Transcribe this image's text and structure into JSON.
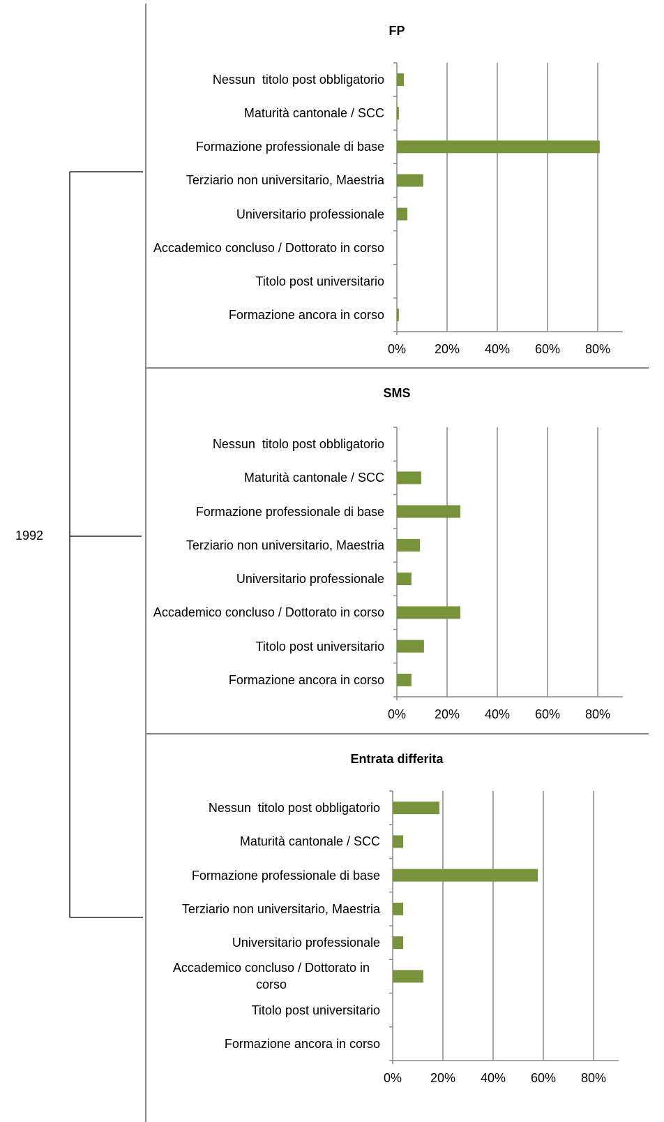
{
  "label": "1992",
  "chart_data": [
    {
      "type": "bar",
      "orientation": "horizontal",
      "title": "FP",
      "categories": [
        "Nessun  titolo post obbligatorio",
        "Maturità cantonale / SCC",
        "Formazione professionale di base",
        "Terziario non universitario, Maestria",
        "Universitario professionale",
        "Accademico concluso / Dottorato in corso",
        "Titolo post universitario",
        "Formazione ancora in corso"
      ],
      "values": [
        2.8,
        0.8,
        80.8,
        10.5,
        4.2,
        0,
        0,
        0.8
      ],
      "color": "#77933c",
      "xlim": [
        0,
        90
      ],
      "xticks": [
        {
          "value": 0,
          "label": "0%"
        },
        {
          "value": 20,
          "label": "20%"
        },
        {
          "value": 40,
          "label": "40%"
        },
        {
          "value": 60,
          "label": "60%"
        },
        {
          "value": 80,
          "label": "80%"
        }
      ],
      "grid": true
    },
    {
      "type": "bar",
      "orientation": "horizontal",
      "title": "SMS",
      "categories": [
        "Nessun  titolo post obbligatorio",
        "Maturità cantonale / SCC",
        "Formazione professionale di base",
        "Terziario non universitario, Maestria",
        "Universitario professionale",
        "Accademico concluso / Dottorato in corso",
        "Titolo post universitario",
        "Formazione ancora in corso"
      ],
      "values": [
        0,
        9.7,
        25.3,
        9.2,
        5.8,
        25.3,
        10.8,
        5.8
      ],
      "color": "#77933c",
      "xlim": [
        0,
        90
      ],
      "xticks": [
        {
          "value": 0,
          "label": "0%"
        },
        {
          "value": 20,
          "label": "20%"
        },
        {
          "value": 40,
          "label": "40%"
        },
        {
          "value": 60,
          "label": "60%"
        },
        {
          "value": 80,
          "label": "80%"
        }
      ],
      "grid": true
    },
    {
      "type": "bar",
      "orientation": "horizontal",
      "title": "Entrata differita",
      "categories": [
        "Nessun  titolo post obbligatorio",
        "Maturità cantonale / SCC",
        "Formazione professionale di base",
        "Terziario non universitario, Maestria",
        "Universitario professionale",
        "Accademico concluso / Dottorato in corso",
        "Titolo post universitario",
        "Formazione ancora in corso"
      ],
      "values": [
        18.6,
        4.2,
        57.8,
        4.2,
        4.2,
        12.2,
        0,
        0
      ],
      "color": "#77933c",
      "xlim": [
        0,
        90
      ],
      "xticks": [
        {
          "value": 0,
          "label": "0%"
        },
        {
          "value": 20,
          "label": "20%"
        },
        {
          "value": 40,
          "label": "40%"
        },
        {
          "value": 60,
          "label": "60%"
        },
        {
          "value": 80,
          "label": "80%"
        }
      ],
      "grid": true
    }
  ]
}
